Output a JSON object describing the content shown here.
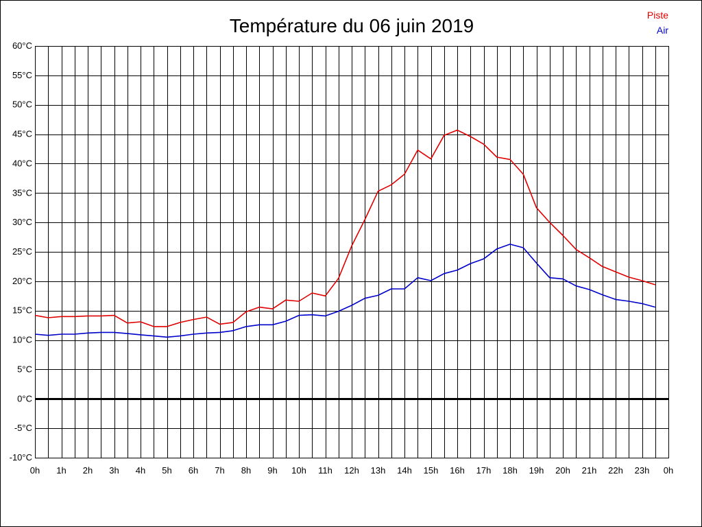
{
  "chart_data": {
    "type": "line",
    "title": "Température du 06 juin 2019",
    "xlabel": "",
    "ylabel": "",
    "x_hours": [
      0,
      0.5,
      1,
      1.5,
      2,
      2.5,
      3,
      3.5,
      4,
      4.5,
      5,
      5.5,
      6,
      6.5,
      7,
      7.5,
      8,
      8.5,
      9,
      9.5,
      10,
      10.5,
      11,
      11.5,
      12,
      12.5,
      13,
      13.5,
      14,
      14.5,
      15,
      15.5,
      16,
      16.5,
      17,
      17.5,
      18,
      18.5,
      19,
      19.5,
      20,
      20.5,
      21,
      21.5,
      22,
      22.5,
      23,
      23.5
    ],
    "x_tick_labels": [
      "0h",
      "1h",
      "2h",
      "3h",
      "4h",
      "5h",
      "6h",
      "7h",
      "8h",
      "9h",
      "10h",
      "11h",
      "12h",
      "13h",
      "14h",
      "15h",
      "16h",
      "17h",
      "18h",
      "19h",
      "20h",
      "21h",
      "22h",
      "23h",
      "0h"
    ],
    "y_tick_labels": [
      "60°C",
      "55°C",
      "50°C",
      "45°C",
      "40°C",
      "35°C",
      "30°C",
      "25°C",
      "20°C",
      "15°C",
      "10°C",
      "5°C",
      "0°C",
      "-5°C",
      "-10°C"
    ],
    "ylim": [
      -10,
      60
    ],
    "xlim": [
      0,
      24
    ],
    "grid": true,
    "legend_position": "top-right",
    "series": [
      {
        "name": "Piste",
        "color": "#e00000",
        "values": [
          14.2,
          13.8,
          14.0,
          14.0,
          14.1,
          14.1,
          14.2,
          12.9,
          13.1,
          12.3,
          12.3,
          13.0,
          13.5,
          13.9,
          12.7,
          13.0,
          14.8,
          15.6,
          15.3,
          16.8,
          16.6,
          18.0,
          17.5,
          20.5,
          26.0,
          30.5,
          35.3,
          36.4,
          38.2,
          42.3,
          40.8,
          44.8,
          45.7,
          44.6,
          43.3,
          41.1,
          40.7,
          38.2,
          32.5,
          30.0,
          27.8,
          25.4,
          24.0,
          22.5,
          21.6,
          20.7,
          20.1,
          19.4
        ]
      },
      {
        "name": "Air",
        "color": "#0000cc",
        "values": [
          11.0,
          10.8,
          11.0,
          11.0,
          11.2,
          11.3,
          11.3,
          11.1,
          10.9,
          10.7,
          10.5,
          10.7,
          11.0,
          11.2,
          11.3,
          11.6,
          12.3,
          12.6,
          12.6,
          13.2,
          14.2,
          14.3,
          14.1,
          14.9,
          15.9,
          17.1,
          17.6,
          18.7,
          18.7,
          20.6,
          20.1,
          21.3,
          21.9,
          23.0,
          23.8,
          25.5,
          26.3,
          25.7,
          23.1,
          20.6,
          20.4,
          19.2,
          18.6,
          17.7,
          16.9,
          16.6,
          16.2,
          15.6
        ]
      }
    ]
  }
}
